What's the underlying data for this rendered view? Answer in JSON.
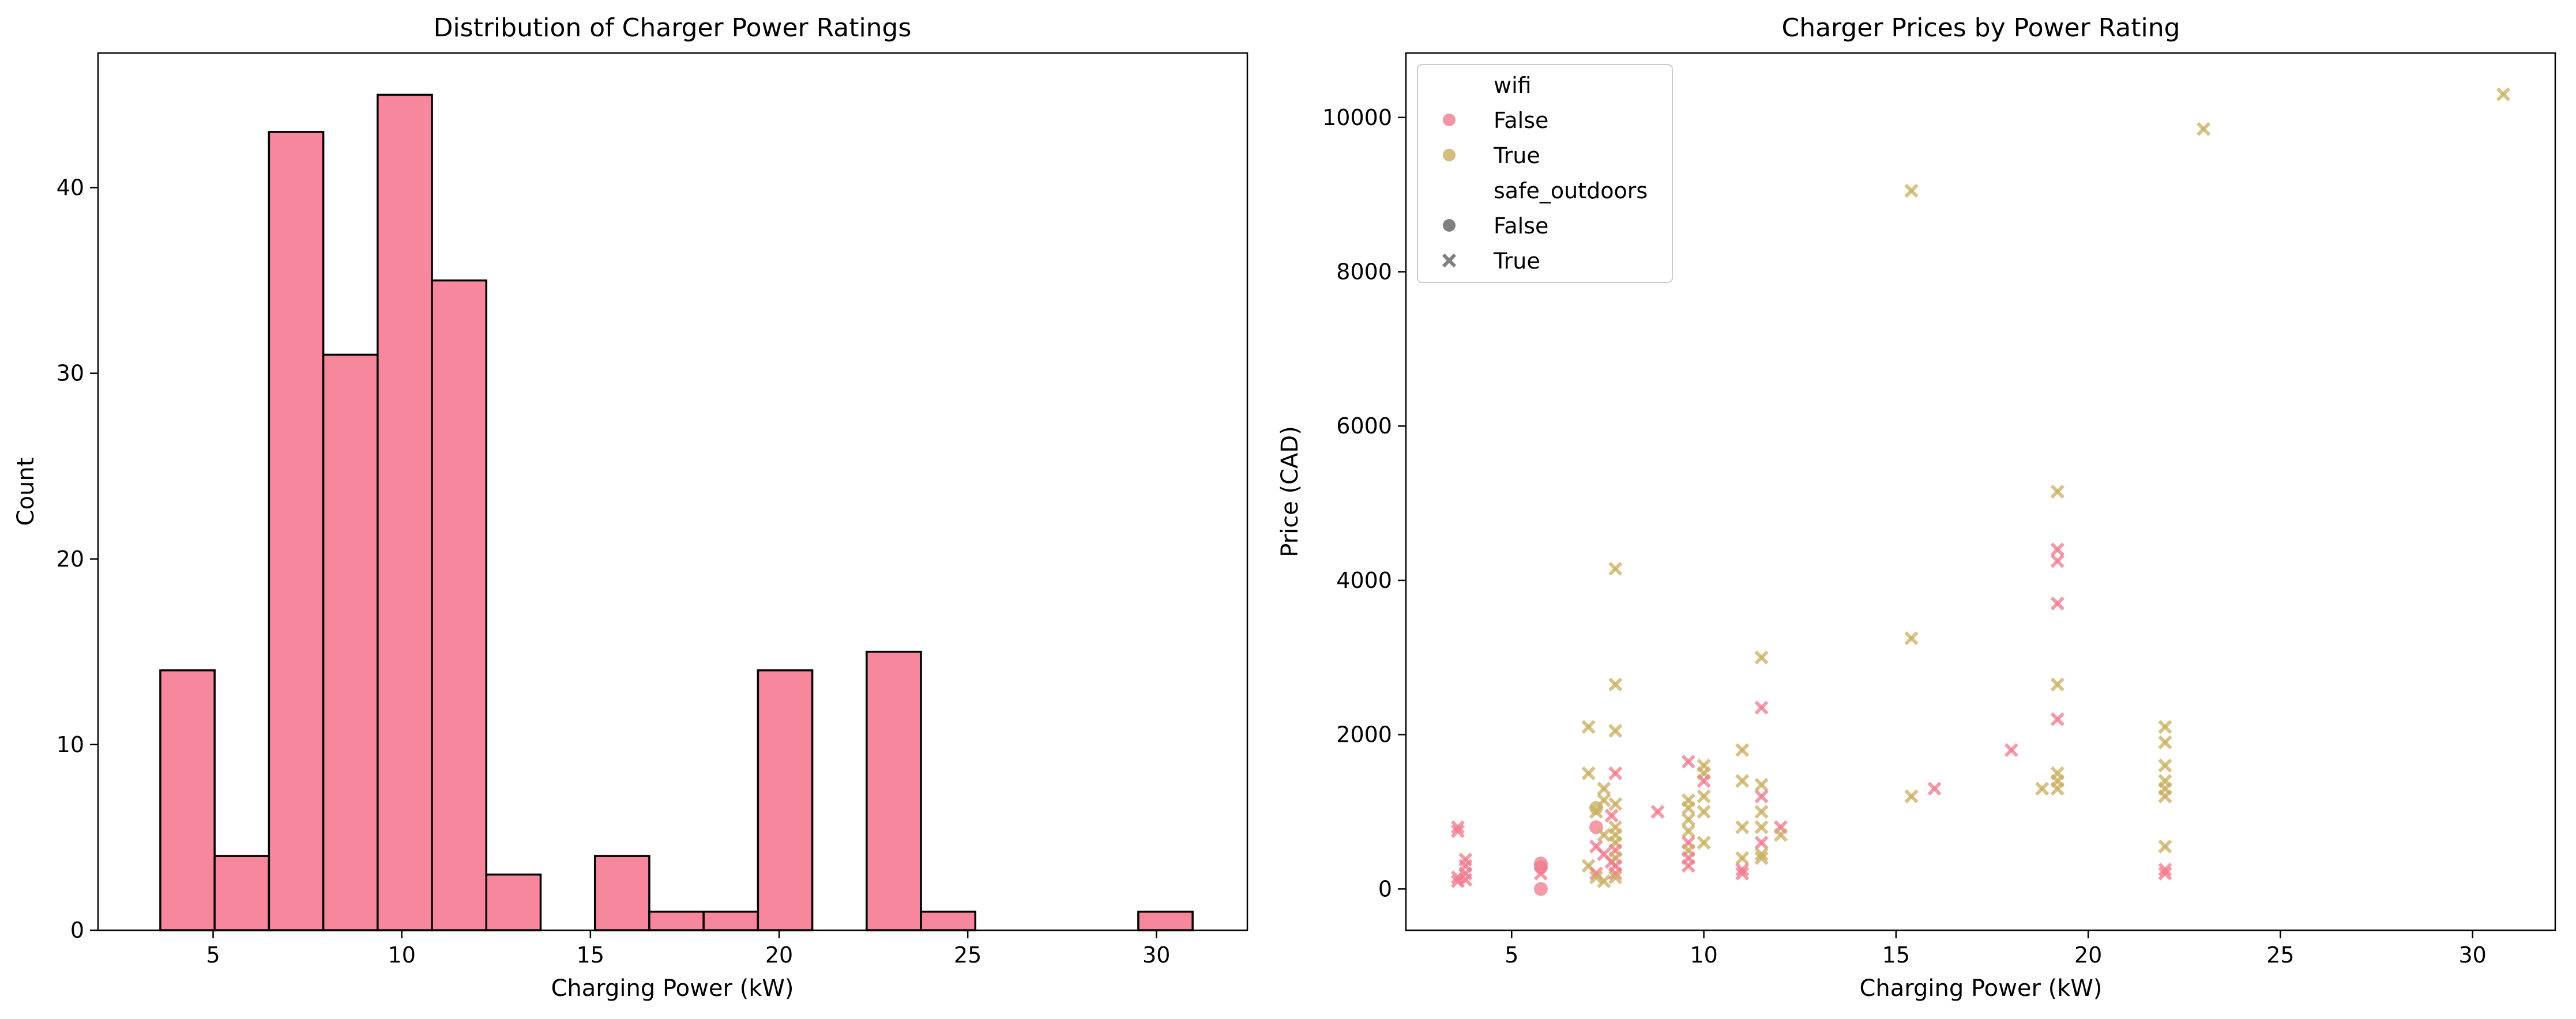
{
  "chart_data": [
    {
      "type": "bar",
      "title": "Distribution of Charger Power Ratings",
      "xlabel": "Charging Power (kW)",
      "ylabel": "Count",
      "xlim": [
        1.95,
        32.41
      ],
      "ylim": [
        0,
        47.25
      ],
      "xticks": [
        5,
        10,
        15,
        20,
        25,
        30
      ],
      "yticks": [
        0,
        10,
        20,
        30,
        40
      ],
      "grid": false,
      "bar_color": "#f7879c",
      "edge_color": "#000000",
      "bins": [
        {
          "x0": 3.6,
          "x1": 5.04,
          "count": 14
        },
        {
          "x0": 5.04,
          "x1": 6.48,
          "count": 4
        },
        {
          "x0": 6.48,
          "x1": 7.92,
          "count": 43
        },
        {
          "x0": 7.92,
          "x1": 9.36,
          "count": 31
        },
        {
          "x0": 9.36,
          "x1": 10.8,
          "count": 45
        },
        {
          "x0": 10.8,
          "x1": 12.24,
          "count": 35
        },
        {
          "x0": 12.24,
          "x1": 13.68,
          "count": 3
        },
        {
          "x0": 13.68,
          "x1": 15.12,
          "count": 0
        },
        {
          "x0": 15.12,
          "x1": 16.56,
          "count": 4
        },
        {
          "x0": 16.56,
          "x1": 18.0,
          "count": 1
        },
        {
          "x0": 18.0,
          "x1": 19.44,
          "count": 1
        },
        {
          "x0": 19.44,
          "x1": 20.88,
          "count": 14
        },
        {
          "x0": 20.88,
          "x1": 22.32,
          "count": 0
        },
        {
          "x0": 22.32,
          "x1": 23.76,
          "count": 15
        },
        {
          "x0": 23.76,
          "x1": 25.2,
          "count": 1
        },
        {
          "x0": 25.2,
          "x1": 26.64,
          "count": 0
        },
        {
          "x0": 26.64,
          "x1": 28.08,
          "count": 0
        },
        {
          "x0": 28.08,
          "x1": 29.52,
          "count": 0
        },
        {
          "x0": 29.52,
          "x1": 30.96,
          "count": 1
        }
      ]
    },
    {
      "type": "scatter",
      "title": "Charger Prices by Power Rating",
      "xlabel": "Charging Power (kW)",
      "ylabel": "Price (CAD)",
      "xlim": [
        2.25,
        32.15
      ],
      "ylim": [
        -535,
        10835
      ],
      "xticks": [
        5,
        10,
        15,
        20,
        25,
        30
      ],
      "yticks": [
        0,
        2000,
        4000,
        6000,
        8000,
        10000
      ],
      "grid": false,
      "legend_position": "upper-left",
      "legend": {
        "hue_title": "wifi",
        "hue_entries": [
          {
            "label": "False",
            "color": "#f07a8e"
          },
          {
            "label": "True",
            "color": "#c9ad5f"
          }
        ],
        "style_title": "safe_outdoors",
        "style_entries": [
          {
            "label": "False",
            "marker": "circle",
            "color": "#808080"
          },
          {
            "label": "True",
            "marker": "x",
            "color": "#808080"
          }
        ]
      },
      "points": [
        {
          "x": 3.6,
          "y": 800,
          "wifi": false,
          "safe_outdoors": true
        },
        {
          "x": 3.6,
          "y": 750,
          "wifi": false,
          "safe_outdoors": true
        },
        {
          "x": 3.6,
          "y": 150,
          "wifi": false,
          "safe_outdoors": true
        },
        {
          "x": 3.6,
          "y": 100,
          "wifi": false,
          "safe_outdoors": true
        },
        {
          "x": 3.8,
          "y": 380,
          "wifi": false,
          "safe_outdoors": true
        },
        {
          "x": 3.8,
          "y": 300,
          "wifi": false,
          "safe_outdoors": true
        },
        {
          "x": 3.8,
          "y": 200,
          "wifi": false,
          "safe_outdoors": true
        },
        {
          "x": 3.8,
          "y": 120,
          "wifi": false,
          "safe_outdoors": true
        },
        {
          "x": 5.76,
          "y": 330,
          "wifi": false,
          "safe_outdoors": false
        },
        {
          "x": 5.76,
          "y": 280,
          "wifi": false,
          "safe_outdoors": false
        },
        {
          "x": 5.76,
          "y": 0,
          "wifi": false,
          "safe_outdoors": false
        },
        {
          "x": 5.76,
          "y": 200,
          "wifi": false,
          "safe_outdoors": true
        },
        {
          "x": 7.0,
          "y": 2100,
          "wifi": true,
          "safe_outdoors": true
        },
        {
          "x": 7.0,
          "y": 1500,
          "wifi": true,
          "safe_outdoors": true
        },
        {
          "x": 7.0,
          "y": 300,
          "wifi": true,
          "safe_outdoors": true
        },
        {
          "x": 7.2,
          "y": 1050,
          "wifi": true,
          "safe_outdoors": false
        },
        {
          "x": 7.2,
          "y": 1000,
          "wifi": true,
          "safe_outdoors": true
        },
        {
          "x": 7.2,
          "y": 800,
          "wifi": false,
          "safe_outdoors": false
        },
        {
          "x": 7.2,
          "y": 550,
          "wifi": false,
          "safe_outdoors": true
        },
        {
          "x": 7.2,
          "y": 200,
          "wifi": false,
          "safe_outdoors": true
        },
        {
          "x": 7.2,
          "y": 150,
          "wifi": true,
          "safe_outdoors": true
        },
        {
          "x": 7.4,
          "y": 1300,
          "wifi": true,
          "safe_outdoors": true
        },
        {
          "x": 7.4,
          "y": 1150,
          "wifi": true,
          "safe_outdoors": true
        },
        {
          "x": 7.4,
          "y": 700,
          "wifi": true,
          "safe_outdoors": true
        },
        {
          "x": 7.4,
          "y": 450,
          "wifi": false,
          "safe_outdoors": true
        },
        {
          "x": 7.4,
          "y": 100,
          "wifi": true,
          "safe_outdoors": true
        },
        {
          "x": 7.6,
          "y": 350,
          "wifi": false,
          "safe_outdoors": true
        },
        {
          "x": 7.6,
          "y": 950,
          "wifi": false,
          "safe_outdoors": true
        },
        {
          "x": 7.7,
          "y": 4150,
          "wifi": true,
          "safe_outdoors": true
        },
        {
          "x": 7.7,
          "y": 2650,
          "wifi": true,
          "safe_outdoors": true
        },
        {
          "x": 7.7,
          "y": 2050,
          "wifi": true,
          "safe_outdoors": true
        },
        {
          "x": 7.7,
          "y": 1500,
          "wifi": false,
          "safe_outdoors": true
        },
        {
          "x": 7.7,
          "y": 1100,
          "wifi": true,
          "safe_outdoors": true
        },
        {
          "x": 7.7,
          "y": 800,
          "wifi": true,
          "safe_outdoors": true
        },
        {
          "x": 7.7,
          "y": 700,
          "wifi": true,
          "safe_outdoors": true
        },
        {
          "x": 7.7,
          "y": 600,
          "wifi": true,
          "safe_outdoors": true
        },
        {
          "x": 7.7,
          "y": 500,
          "wifi": false,
          "safe_outdoors": true
        },
        {
          "x": 7.7,
          "y": 400,
          "wifi": true,
          "safe_outdoors": true
        },
        {
          "x": 7.7,
          "y": 300,
          "wifi": false,
          "safe_outdoors": true
        },
        {
          "x": 7.7,
          "y": 200,
          "wifi": false,
          "safe_outdoors": true
        },
        {
          "x": 7.7,
          "y": 150,
          "wifi": true,
          "safe_outdoors": true
        },
        {
          "x": 8.8,
          "y": 1000,
          "wifi": false,
          "safe_outdoors": true
        },
        {
          "x": 9.6,
          "y": 1650,
          "wifi": false,
          "safe_outdoors": true
        },
        {
          "x": 9.6,
          "y": 1150,
          "wifi": true,
          "safe_outdoors": true
        },
        {
          "x": 9.6,
          "y": 1050,
          "wifi": true,
          "safe_outdoors": true
        },
        {
          "x": 9.6,
          "y": 900,
          "wifi": true,
          "safe_outdoors": true
        },
        {
          "x": 9.6,
          "y": 750,
          "wifi": true,
          "safe_outdoors": true
        },
        {
          "x": 9.6,
          "y": 600,
          "wifi": false,
          "safe_outdoors": true
        },
        {
          "x": 9.6,
          "y": 500,
          "wifi": true,
          "safe_outdoors": true
        },
        {
          "x": 9.6,
          "y": 400,
          "wifi": false,
          "safe_outdoors": true
        },
        {
          "x": 9.6,
          "y": 300,
          "wifi": false,
          "safe_outdoors": true
        },
        {
          "x": 10.0,
          "y": 1600,
          "wifi": true,
          "safe_outdoors": true
        },
        {
          "x": 10.0,
          "y": 1500,
          "wifi": true,
          "safe_outdoors": true
        },
        {
          "x": 10.0,
          "y": 1400,
          "wifi": false,
          "safe_outdoors": true
        },
        {
          "x": 10.0,
          "y": 1200,
          "wifi": true,
          "safe_outdoors": true
        },
        {
          "x": 10.0,
          "y": 1000,
          "wifi": true,
          "safe_outdoors": true
        },
        {
          "x": 10.0,
          "y": 600,
          "wifi": true,
          "safe_outdoors": true
        },
        {
          "x": 11.0,
          "y": 1800,
          "wifi": true,
          "safe_outdoors": true
        },
        {
          "x": 11.0,
          "y": 1400,
          "wifi": true,
          "safe_outdoors": true
        },
        {
          "x": 11.0,
          "y": 800,
          "wifi": true,
          "safe_outdoors": true
        },
        {
          "x": 11.0,
          "y": 400,
          "wifi": true,
          "safe_outdoors": true
        },
        {
          "x": 11.0,
          "y": 250,
          "wifi": false,
          "safe_outdoors": true
        },
        {
          "x": 11.0,
          "y": 200,
          "wifi": false,
          "safe_outdoors": true
        },
        {
          "x": 11.5,
          "y": 3000,
          "wifi": true,
          "safe_outdoors": true
        },
        {
          "x": 11.5,
          "y": 2350,
          "wifi": false,
          "safe_outdoors": true
        },
        {
          "x": 11.5,
          "y": 1350,
          "wifi": true,
          "safe_outdoors": true
        },
        {
          "x": 11.5,
          "y": 1200,
          "wifi": false,
          "safe_outdoors": true
        },
        {
          "x": 11.5,
          "y": 1000,
          "wifi": true,
          "safe_outdoors": true
        },
        {
          "x": 11.5,
          "y": 800,
          "wifi": true,
          "safe_outdoors": true
        },
        {
          "x": 11.5,
          "y": 600,
          "wifi": false,
          "safe_outdoors": true
        },
        {
          "x": 11.5,
          "y": 450,
          "wifi": true,
          "safe_outdoors": true
        },
        {
          "x": 11.5,
          "y": 400,
          "wifi": true,
          "safe_outdoors": true
        },
        {
          "x": 12.0,
          "y": 800,
          "wifi": false,
          "safe_outdoors": true
        },
        {
          "x": 12.0,
          "y": 700,
          "wifi": true,
          "safe_outdoors": true
        },
        {
          "x": 15.4,
          "y": 9050,
          "wifi": true,
          "safe_outdoors": true
        },
        {
          "x": 15.4,
          "y": 3250,
          "wifi": true,
          "safe_outdoors": true
        },
        {
          "x": 15.4,
          "y": 1200,
          "wifi": true,
          "safe_outdoors": true
        },
        {
          "x": 16.0,
          "y": 1300,
          "wifi": false,
          "safe_outdoors": true
        },
        {
          "x": 18.0,
          "y": 1800,
          "wifi": false,
          "safe_outdoors": true
        },
        {
          "x": 18.8,
          "y": 1300,
          "wifi": true,
          "safe_outdoors": true
        },
        {
          "x": 19.2,
          "y": 5150,
          "wifi": true,
          "safe_outdoors": true
        },
        {
          "x": 19.2,
          "y": 4400,
          "wifi": false,
          "safe_outdoors": true
        },
        {
          "x": 19.2,
          "y": 4250,
          "wifi": false,
          "safe_outdoors": true
        },
        {
          "x": 19.2,
          "y": 3700,
          "wifi": false,
          "safe_outdoors": true
        },
        {
          "x": 19.2,
          "y": 2650,
          "wifi": true,
          "safe_outdoors": true
        },
        {
          "x": 19.2,
          "y": 2200,
          "wifi": false,
          "safe_outdoors": true
        },
        {
          "x": 19.2,
          "y": 1500,
          "wifi": true,
          "safe_outdoors": true
        },
        {
          "x": 19.2,
          "y": 1400,
          "wifi": true,
          "safe_outdoors": true
        },
        {
          "x": 19.2,
          "y": 1300,
          "wifi": true,
          "safe_outdoors": true
        },
        {
          "x": 22.0,
          "y": 2100,
          "wifi": true,
          "safe_outdoors": true
        },
        {
          "x": 22.0,
          "y": 1900,
          "wifi": true,
          "safe_outdoors": true
        },
        {
          "x": 22.0,
          "y": 1600,
          "wifi": true,
          "safe_outdoors": true
        },
        {
          "x": 22.0,
          "y": 1400,
          "wifi": true,
          "safe_outdoors": true
        },
        {
          "x": 22.0,
          "y": 1300,
          "wifi": true,
          "safe_outdoors": true
        },
        {
          "x": 22.0,
          "y": 1200,
          "wifi": true,
          "safe_outdoors": true
        },
        {
          "x": 22.0,
          "y": 550,
          "wifi": true,
          "safe_outdoors": true
        },
        {
          "x": 22.0,
          "y": 250,
          "wifi": false,
          "safe_outdoors": true
        },
        {
          "x": 22.0,
          "y": 200,
          "wifi": false,
          "safe_outdoors": true
        },
        {
          "x": 23.0,
          "y": 9850,
          "wifi": true,
          "safe_outdoors": true
        },
        {
          "x": 30.8,
          "y": 10300,
          "wifi": true,
          "safe_outdoors": true
        }
      ]
    }
  ]
}
